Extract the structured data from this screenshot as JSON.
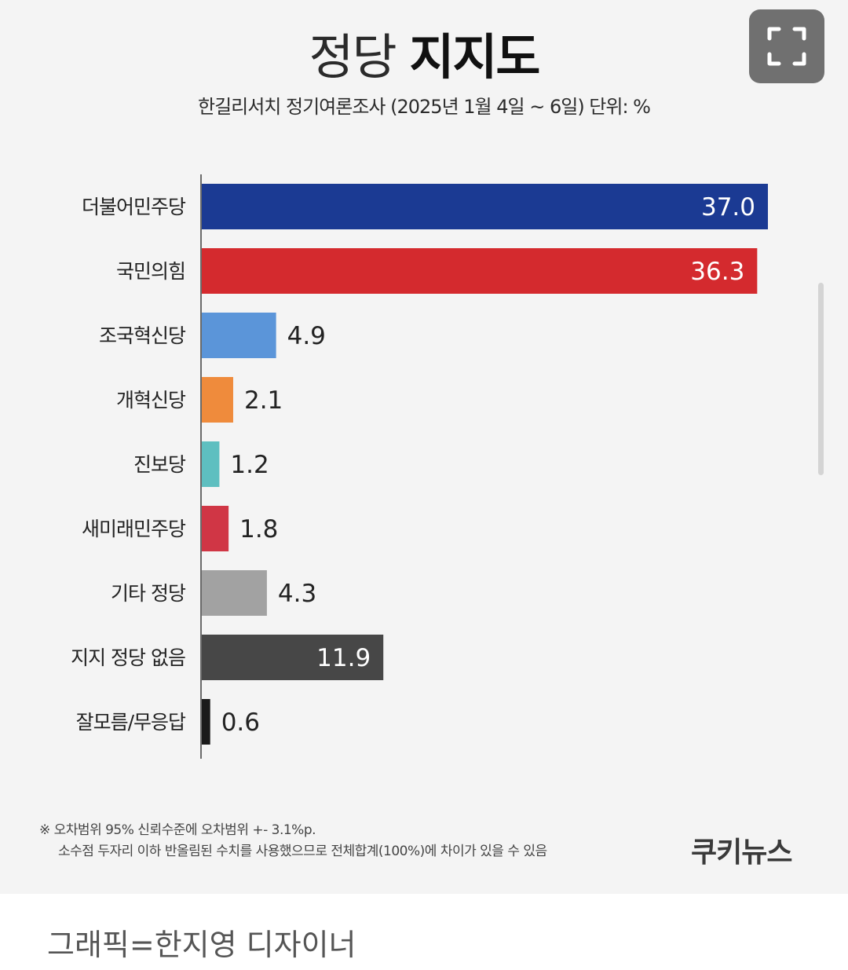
{
  "title": {
    "light": "정당",
    "bold": "지지도"
  },
  "subtitle": "한길리서치 정기여론조사 (2025년 1월 4일 ~ 6일) 단위: %",
  "toolbar": {
    "fullscreen_icon": "fullscreen-icon"
  },
  "chart_data": {
    "type": "bar",
    "orientation": "horizontal",
    "categories": [
      "더불어민주당",
      "국민의힘",
      "조국혁신당",
      "개혁신당",
      "진보당",
      "새미래민주당",
      "기타 정당",
      "지지 정당 없음",
      "잘모름/무응답"
    ],
    "values": [
      37.0,
      36.3,
      4.9,
      2.1,
      1.2,
      1.8,
      4.3,
      11.9,
      0.6
    ],
    "labels": [
      "37.0",
      "36.3",
      "4.9",
      "2.1",
      "1.2",
      "1.8",
      "4.3",
      "11.9",
      "0.6"
    ],
    "colors": [
      "#1b3a93",
      "#d42a2e",
      "#5b95d9",
      "#ef8b3c",
      "#5ebfc0",
      "#d03645",
      "#a2a2a2",
      "#474747",
      "#1a1a1a"
    ],
    "xlim": [
      0,
      37
    ],
    "grid": false,
    "legend": "none"
  },
  "footnote": {
    "line1": "※ 오차범위 95% 신뢰수준에 오차범위 +- 3.1%p.",
    "line2": "소수점 두자리 이하 반올림된 수치를 사용했으므로 전체합계(100%)에 차이가 있을 수 있음"
  },
  "brand": "쿠키뉴스",
  "credit": "그래픽=한지영 디자이너"
}
